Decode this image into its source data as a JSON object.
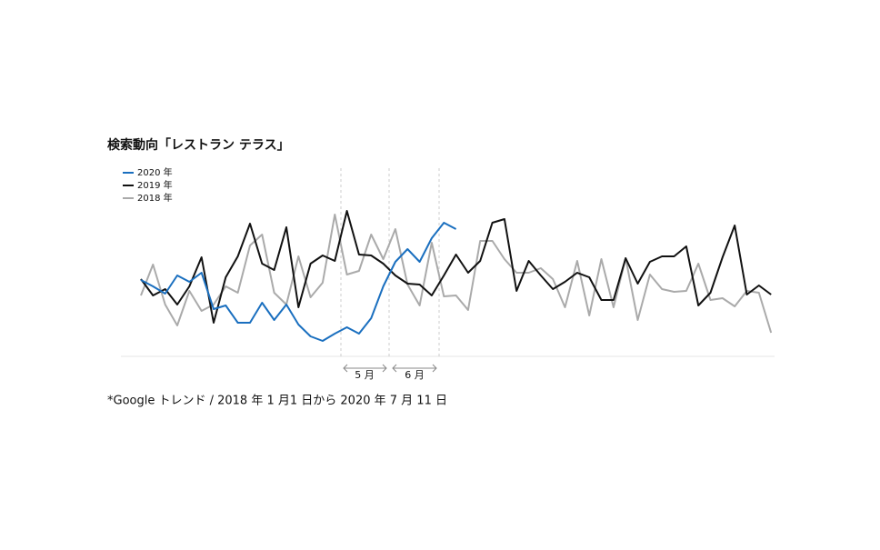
{
  "chart_data": {
    "type": "line",
    "title": "検索動向「レストラン テラス」",
    "footnote": "*Google トレンド / 2018 年 1 月1 日から 2020 年 7 月 11 日",
    "annotations": [
      "5 月",
      "6 月"
    ],
    "ylim": [
      0,
      200
    ],
    "series": [
      {
        "name": "2020 年",
        "color": "#1a6fbf",
        "values": [
          84,
          77,
          69,
          89,
          82,
          92,
          52,
          56,
          37,
          37,
          59,
          40,
          57,
          35,
          22,
          17,
          25,
          32,
          25,
          42,
          77,
          104,
          118,
          104,
          130,
          147,
          140
        ]
      },
      {
        "name": "2019 年",
        "color": "#111111",
        "values": [
          85,
          67,
          74,
          57,
          77,
          109,
          37,
          87,
          110,
          146,
          102,
          95,
          142,
          54,
          102,
          111,
          105,
          160,
          112,
          111,
          102,
          89,
          80,
          79,
          67,
          89,
          112,
          92,
          105,
          147,
          151,
          72,
          105,
          89,
          74,
          82,
          92,
          87,
          62,
          62,
          108,
          80,
          104,
          110,
          110,
          121,
          56,
          70,
          109,
          144,
          68,
          78,
          68
        ]
      },
      {
        "name": "2018 年",
        "color": "#aaaaaa",
        "values": [
          67,
          101,
          57,
          34,
          72,
          50,
          57,
          77,
          70,
          122,
          134,
          70,
          57,
          110,
          65,
          81,
          156,
          90,
          94,
          134,
          107,
          140,
          79,
          56,
          125,
          66,
          67,
          51,
          127,
          127,
          107,
          92,
          92,
          97,
          85,
          54,
          105,
          45,
          107,
          54,
          108,
          40,
          90,
          74,
          71,
          72,
          102,
          62,
          64,
          55,
          72,
          70,
          26
        ]
      }
    ]
  }
}
